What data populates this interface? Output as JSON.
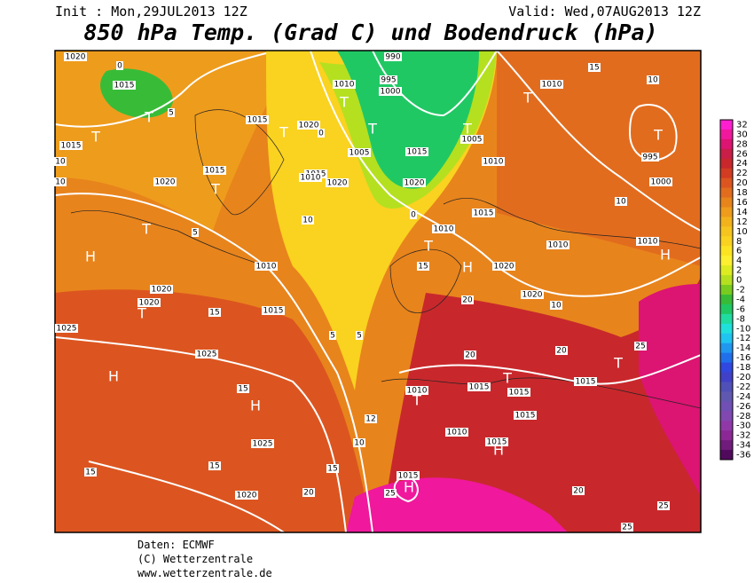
{
  "header": {
    "init": "Init : Mon,29JUL2013 12Z",
    "valid": "Valid: Wed,07AUG2013 12Z",
    "title": "850 hPa Temp. (Grad C) und Bodendruck (hPa)"
  },
  "colorbar": {
    "values": [
      32,
      30,
      28,
      26,
      24,
      22,
      20,
      18,
      16,
      14,
      12,
      10,
      8,
      6,
      4,
      2,
      0,
      -2,
      -4,
      -6,
      -8,
      -10,
      -12,
      -14,
      -16,
      -18,
      -20,
      -22,
      -24,
      -26,
      -28,
      -30,
      -32,
      -34,
      -36
    ],
    "colors": [
      "#ff1fd0",
      "#f0189c",
      "#dc1472",
      "#c81e48",
      "#c8282c",
      "#d23c22",
      "#dc5520",
      "#e26c1e",
      "#e8841c",
      "#ee9c1c",
      "#f2b21c",
      "#f6c41e",
      "#fad220",
      "#fce422",
      "#fcf030",
      "#dcec20",
      "#b4e020",
      "#78cc20",
      "#38bc38",
      "#20c864",
      "#20dca0",
      "#20e0dc",
      "#20c4f0",
      "#2098f0",
      "#2070ec",
      "#3048e0",
      "#4040c8",
      "#5050b8",
      "#6058b0",
      "#7050b4",
      "#8048b0",
      "#9038a8",
      "#8c2896",
      "#701c7c",
      "#500a5c"
    ]
  },
  "map": {
    "labels": [
      "1020",
      "0",
      "1015",
      "T",
      "5",
      "T",
      "1015",
      "10",
      "10",
      "1020",
      "1015",
      "T",
      "5",
      "T",
      "H",
      "1020",
      "1020",
      "T",
      "15",
      "1025",
      "1025",
      "H",
      "15",
      "H",
      "1025",
      "15",
      "15",
      "1020",
      "20",
      "15",
      "10",
      "1015",
      "T",
      "1020",
      "0",
      "T",
      "1010",
      "995",
      "1000",
      "990",
      "T",
      "1015",
      "1020",
      "0",
      "T",
      "1005",
      "1010",
      "1005",
      "1015",
      "1010",
      "1020",
      "10",
      "1015",
      "T",
      "1010",
      "15",
      "H",
      "1020",
      "1020",
      "10",
      "1010",
      "H",
      "1010",
      "1010",
      "T",
      "15",
      "10",
      "T",
      "995",
      "1000",
      "10",
      "1010",
      "1015",
      "5",
      "5",
      "20",
      "20",
      "20",
      "25",
      "T",
      "1015",
      "1015",
      "1015",
      "1015",
      "T",
      "1010",
      "T",
      "1010",
      "1015",
      "H",
      "1015",
      "H",
      "25",
      "20",
      "25",
      "25",
      "12"
    ]
  },
  "footer": {
    "source": "Daten: ECMWF",
    "copyright": "(C) Wetterzentrale",
    "url": "www.wetterzentrale.de"
  }
}
